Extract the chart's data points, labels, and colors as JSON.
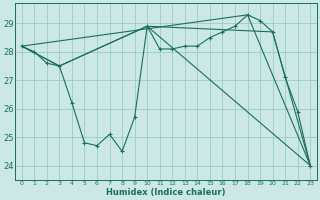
{
  "xlabel": "Humidex (Indice chaleur)",
  "background_color": "#cce8e4",
  "grid_color": "#99cccc",
  "line_color": "#1a6e60",
  "xlim": [
    -0.5,
    23.5
  ],
  "ylim": [
    23.5,
    29.7
  ],
  "yticks": [
    24,
    25,
    26,
    27,
    28,
    29
  ],
  "xticks": [
    0,
    1,
    2,
    3,
    4,
    5,
    6,
    7,
    8,
    9,
    10,
    11,
    12,
    13,
    14,
    15,
    16,
    17,
    18,
    19,
    20,
    21,
    22,
    23
  ],
  "series1_x": [
    0,
    1,
    2,
    3,
    4,
    5,
    6,
    7,
    8,
    9,
    10,
    11,
    12,
    13,
    14,
    15,
    16,
    17,
    18,
    19,
    20,
    21,
    22,
    23
  ],
  "series1_y": [
    28.2,
    28.0,
    27.6,
    27.5,
    26.2,
    24.8,
    24.7,
    25.1,
    24.5,
    25.7,
    28.9,
    28.1,
    28.1,
    28.2,
    28.2,
    28.5,
    28.7,
    28.9,
    29.3,
    29.1,
    28.7,
    27.1,
    25.9,
    24.0
  ],
  "series2_x": [
    0,
    3,
    10,
    20,
    23
  ],
  "series2_y": [
    28.2,
    27.5,
    28.9,
    28.7,
    24.0
  ],
  "series3_x": [
    0,
    3,
    10,
    23
  ],
  "series3_y": [
    28.2,
    27.5,
    28.9,
    24.0
  ],
  "series4_x": [
    0,
    18,
    23
  ],
  "series4_y": [
    28.2,
    29.3,
    24.0
  ],
  "xlabel_fontsize": 6,
  "ytick_fontsize": 6,
  "xtick_fontsize": 4.5
}
